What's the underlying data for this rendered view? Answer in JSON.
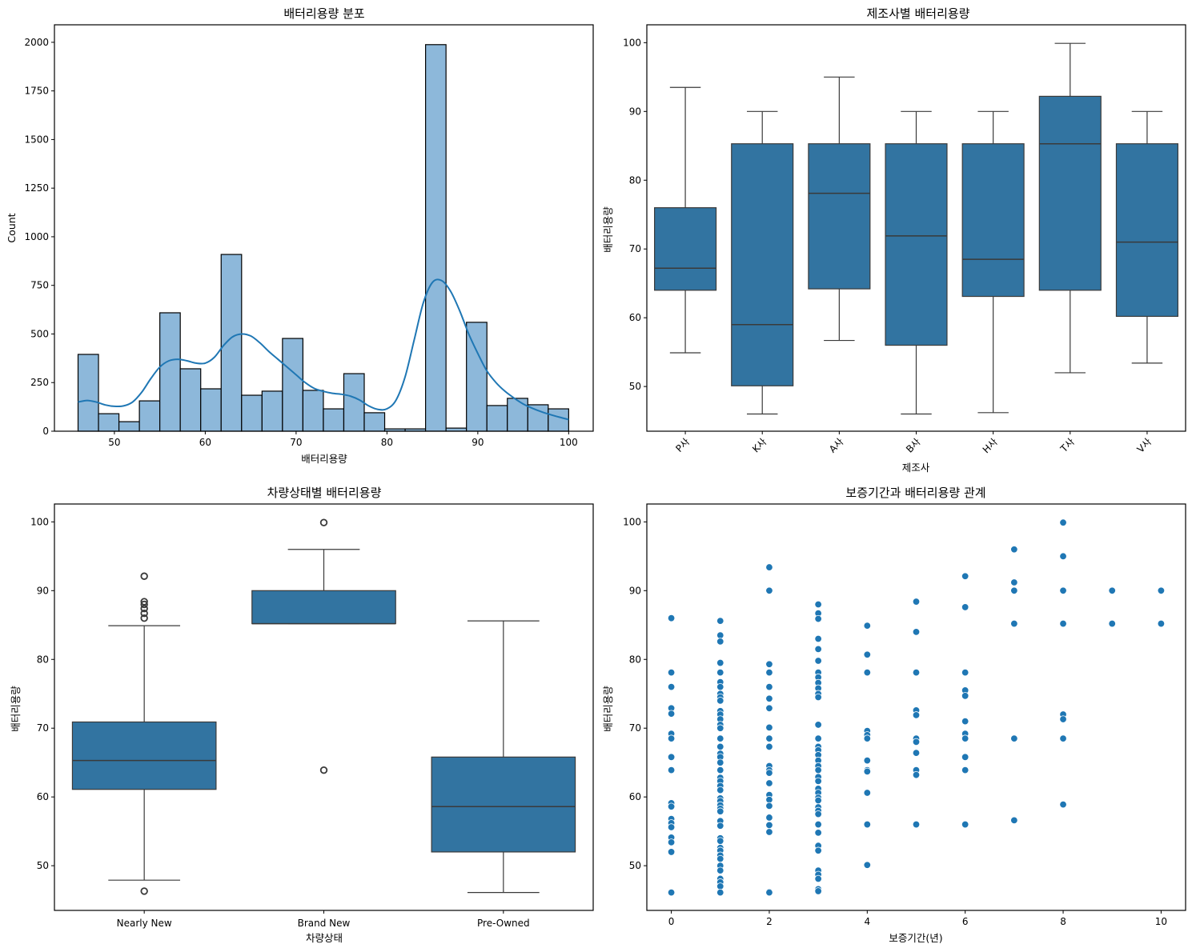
{
  "colors": {
    "hist_fill": "#8db8da",
    "hist_edge": "#000000",
    "kde_line": "#1f77b4",
    "box_fill": "#3274a1",
    "box_edge": "#3a3a3a",
    "scatter": "#1f77b4"
  },
  "chart_data": [
    {
      "id": "hist",
      "type": "bar",
      "subtype": "histogram-with-kde",
      "title": "배터리용량 분포",
      "xlabel": "배터리용량",
      "ylabel": "Count",
      "xlim": [
        43.4,
        102.7
      ],
      "ylim": [
        0,
        2090
      ],
      "xticks": [
        50,
        60,
        70,
        80,
        90,
        100
      ],
      "yticks": [
        0,
        250,
        500,
        750,
        1000,
        1250,
        1500,
        1750,
        2000
      ],
      "bin_start": 46.0,
      "bin_width": 2.25,
      "values": [
        395,
        90,
        49,
        156,
        609,
        321,
        218,
        909,
        185,
        206,
        477,
        210,
        115,
        296,
        95,
        12,
        12,
        1988,
        16,
        560,
        132,
        169,
        136,
        115
      ],
      "kde": {
        "x": [
          46,
          47,
          48,
          49,
          50,
          51,
          52,
          53,
          54,
          55,
          56,
          57,
          58,
          59,
          60,
          61,
          62,
          63,
          64,
          65,
          66,
          67,
          68,
          69,
          70,
          71,
          72,
          73,
          74,
          75,
          76,
          77,
          78,
          79,
          80,
          81,
          82,
          83,
          84,
          85,
          86,
          87,
          88,
          89,
          90,
          91,
          92,
          93,
          94,
          95,
          96,
          97,
          98,
          99,
          100
        ],
        "y": [
          150,
          158,
          150,
          135,
          128,
          130,
          150,
          200,
          270,
          330,
          362,
          370,
          362,
          350,
          350,
          380,
          440,
          485,
          500,
          490,
          455,
          410,
          370,
          330,
          290,
          250,
          220,
          205,
          195,
          190,
          180,
          160,
          130,
          112,
          115,
          160,
          280,
          470,
          660,
          765,
          775,
          720,
          620,
          500,
          400,
          310,
          250,
          205,
          170,
          140,
          118,
          100,
          85,
          72,
          60
        ]
      }
    },
    {
      "id": "box_maker",
      "type": "box",
      "title": "제조사별 배터리용량",
      "xlabel": "제조사",
      "ylabel": "배터리용량",
      "ylim": [
        43.5,
        102.6
      ],
      "yticks": [
        50,
        60,
        70,
        80,
        90,
        100
      ],
      "categories": [
        "P사",
        "K사",
        "A사",
        "B사",
        "H사",
        "T사",
        "V사"
      ],
      "boxes": [
        {
          "whislo": 54.9,
          "q1": 64.0,
          "med": 67.2,
          "q3": 76.0,
          "whishi": 93.5,
          "fliers": []
        },
        {
          "whislo": 46.0,
          "q1": 50.1,
          "med": 59.0,
          "q3": 85.3,
          "whishi": 90.0,
          "fliers": []
        },
        {
          "whislo": 56.7,
          "q1": 64.2,
          "med": 78.1,
          "q3": 85.3,
          "whishi": 95.0,
          "fliers": []
        },
        {
          "whislo": 46.0,
          "q1": 56.0,
          "med": 71.9,
          "q3": 85.3,
          "whishi": 90.0,
          "fliers": []
        },
        {
          "whislo": 46.2,
          "q1": 63.1,
          "med": 68.5,
          "q3": 85.3,
          "whishi": 90.0,
          "fliers": []
        },
        {
          "whislo": 52.0,
          "q1": 64.0,
          "med": 85.3,
          "q3": 92.2,
          "whishi": 99.9,
          "fliers": []
        },
        {
          "whislo": 53.4,
          "q1": 60.2,
          "med": 71.0,
          "q3": 85.3,
          "whishi": 90.0,
          "fliers": []
        }
      ]
    },
    {
      "id": "box_condition",
      "type": "box",
      "title": "차량상태별 배터리용량",
      "xlabel": "차량상태",
      "ylabel": "배터리용량",
      "ylim": [
        43.5,
        102.6
      ],
      "yticks": [
        50,
        60,
        70,
        80,
        90,
        100
      ],
      "categories": [
        "Nearly New",
        "Brand New",
        "Pre-Owned"
      ],
      "boxes": [
        {
          "whislo": 47.9,
          "q1": 61.1,
          "med": 65.3,
          "q3": 70.9,
          "whishi": 84.9,
          "fliers": [
            92.1,
            88.4,
            88.0,
            87.4,
            86.7,
            86.0,
            46.3
          ]
        },
        {
          "whislo": 85.2,
          "q1": 85.2,
          "med": 85.2,
          "q3": 90.0,
          "whishi": 96.0,
          "fliers": [
            99.9,
            63.9
          ]
        },
        {
          "whislo": 46.1,
          "q1": 52.0,
          "med": 58.6,
          "q3": 65.8,
          "whishi": 85.6,
          "fliers": []
        }
      ]
    },
    {
      "id": "scatter",
      "type": "scatter",
      "title": "보증기간과 배터리용량 관계",
      "xlabel": "보증기간(년)",
      "ylabel": "배터리용량",
      "xlim": [
        -0.5,
        10.5
      ],
      "ylim": [
        43.5,
        102.6
      ],
      "xticks": [
        0,
        2,
        4,
        6,
        8,
        10
      ],
      "yticks": [
        50,
        60,
        70,
        80,
        90,
        100
      ],
      "points": [
        [
          0,
          86.0
        ],
        [
          0,
          78.1
        ],
        [
          0,
          76.0
        ],
        [
          0,
          72.9
        ],
        [
          0,
          72.1
        ],
        [
          0,
          69.2
        ],
        [
          0,
          68.5
        ],
        [
          0,
          65.8
        ],
        [
          0,
          63.9
        ],
        [
          0,
          59.1
        ],
        [
          0,
          58.6
        ],
        [
          0,
          56.8
        ],
        [
          0,
          56.2
        ],
        [
          0,
          55.6
        ],
        [
          0,
          54.1
        ],
        [
          0,
          53.4
        ],
        [
          0,
          52.0
        ],
        [
          0,
          46.1
        ],
        [
          1,
          85.6
        ],
        [
          1,
          83.5
        ],
        [
          1,
          82.6
        ],
        [
          1,
          79.5
        ],
        [
          1,
          78.1
        ],
        [
          1,
          76.7
        ],
        [
          1,
          76.0
        ],
        [
          1,
          75.0
        ],
        [
          1,
          74.5
        ],
        [
          1,
          74.0
        ],
        [
          1,
          72.5
        ],
        [
          1,
          72.0
        ],
        [
          1,
          71.3
        ],
        [
          1,
          70.5
        ],
        [
          1,
          70.0
        ],
        [
          1,
          68.5
        ],
        [
          1,
          67.3
        ],
        [
          1,
          66.3
        ],
        [
          1,
          65.8
        ],
        [
          1,
          65.0
        ],
        [
          1,
          63.9
        ],
        [
          1,
          62.8
        ],
        [
          1,
          62.3
        ],
        [
          1,
          61.6
        ],
        [
          1,
          61.0
        ],
        [
          1,
          59.8
        ],
        [
          1,
          59.4
        ],
        [
          1,
          58.8
        ],
        [
          1,
          58.3
        ],
        [
          1,
          57.9
        ],
        [
          1,
          56.5
        ],
        [
          1,
          55.8
        ],
        [
          1,
          54.0
        ],
        [
          1,
          53.6
        ],
        [
          1,
          52.6
        ],
        [
          1,
          52.2
        ],
        [
          1,
          51.5
        ],
        [
          1,
          51.0
        ],
        [
          1,
          50.0
        ],
        [
          1,
          49.3
        ],
        [
          1,
          48.1
        ],
        [
          1,
          47.6
        ],
        [
          1,
          47.0
        ],
        [
          1,
          46.1
        ],
        [
          2,
          93.4
        ],
        [
          2,
          90.0
        ],
        [
          2,
          79.3
        ],
        [
          2,
          78.1
        ],
        [
          2,
          76.0
        ],
        [
          2,
          74.3
        ],
        [
          2,
          72.9
        ],
        [
          2,
          70.1
        ],
        [
          2,
          68.5
        ],
        [
          2,
          67.3
        ],
        [
          2,
          64.5
        ],
        [
          2,
          63.9
        ],
        [
          2,
          63.5
        ],
        [
          2,
          62.0
        ],
        [
          2,
          60.3
        ],
        [
          2,
          59.6
        ],
        [
          2,
          58.7
        ],
        [
          2,
          57.0
        ],
        [
          2,
          55.9
        ],
        [
          2,
          54.9
        ],
        [
          2,
          46.2
        ],
        [
          2,
          46.1
        ],
        [
          3,
          88.0
        ],
        [
          3,
          86.7
        ],
        [
          3,
          85.9
        ],
        [
          3,
          83.0
        ],
        [
          3,
          81.5
        ],
        [
          3,
          79.8
        ],
        [
          3,
          78.1
        ],
        [
          3,
          77.4
        ],
        [
          3,
          76.6
        ],
        [
          3,
          75.8
        ],
        [
          3,
          75.0
        ],
        [
          3,
          74.5
        ],
        [
          3,
          70.5
        ],
        [
          3,
          68.5
        ],
        [
          3,
          67.3
        ],
        [
          3,
          66.8
        ],
        [
          3,
          66.1
        ],
        [
          3,
          65.3
        ],
        [
          3,
          64.5
        ],
        [
          3,
          63.9
        ],
        [
          3,
          62.9
        ],
        [
          3,
          62.3
        ],
        [
          3,
          61.2
        ],
        [
          3,
          60.6
        ],
        [
          3,
          59.9
        ],
        [
          3,
          59.5
        ],
        [
          3,
          58.5
        ],
        [
          3,
          58.0
        ],
        [
          3,
          57.5
        ],
        [
          3,
          56.0
        ],
        [
          3,
          54.8
        ],
        [
          3,
          52.9
        ],
        [
          3,
          52.2
        ],
        [
          3,
          49.3
        ],
        [
          3,
          48.7
        ],
        [
          3,
          48.1
        ],
        [
          3,
          46.6
        ],
        [
          3,
          46.3
        ],
        [
          4,
          84.9
        ],
        [
          4,
          80.7
        ],
        [
          4,
          78.1
        ],
        [
          4,
          69.6
        ],
        [
          4,
          69.0
        ],
        [
          4,
          68.5
        ],
        [
          4,
          65.3
        ],
        [
          4,
          63.9
        ],
        [
          4,
          63.7
        ],
        [
          4,
          60.6
        ],
        [
          4,
          56.0
        ],
        [
          4,
          50.1
        ],
        [
          5,
          88.4
        ],
        [
          5,
          84.0
        ],
        [
          5,
          78.1
        ],
        [
          5,
          72.6
        ],
        [
          5,
          71.9
        ],
        [
          5,
          68.5
        ],
        [
          5,
          68.0
        ],
        [
          5,
          66.4
        ],
        [
          5,
          63.9
        ],
        [
          5,
          63.2
        ],
        [
          5,
          56.0
        ],
        [
          6,
          92.1
        ],
        [
          6,
          87.6
        ],
        [
          6,
          78.1
        ],
        [
          6,
          75.5
        ],
        [
          6,
          74.7
        ],
        [
          6,
          71.0
        ],
        [
          6,
          69.2
        ],
        [
          6,
          68.5
        ],
        [
          6,
          65.8
        ],
        [
          6,
          63.9
        ],
        [
          6,
          56.0
        ],
        [
          7,
          96.0
        ],
        [
          7,
          91.2
        ],
        [
          7,
          90.0
        ],
        [
          7,
          85.2
        ],
        [
          7,
          68.5
        ],
        [
          7,
          56.6
        ],
        [
          8,
          99.9
        ],
        [
          8,
          95.0
        ],
        [
          8,
          90.0
        ],
        [
          8,
          85.2
        ],
        [
          8,
          72.0
        ],
        [
          8,
          71.3
        ],
        [
          8,
          68.5
        ],
        [
          8,
          58.9
        ],
        [
          9,
          90.0
        ],
        [
          9,
          85.2
        ],
        [
          10,
          90.0
        ],
        [
          10,
          85.2
        ]
      ]
    }
  ]
}
